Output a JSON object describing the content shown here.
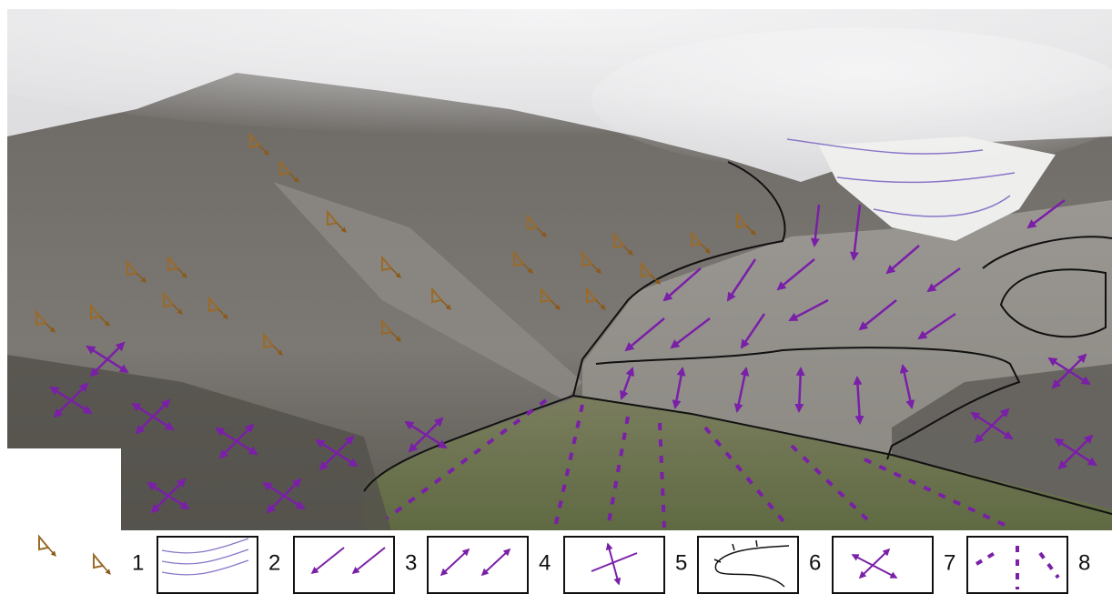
{
  "legend": {
    "items": [
      {
        "label": "1"
      },
      {
        "label": "2"
      },
      {
        "label": "3"
      },
      {
        "label": "4"
      },
      {
        "label": "5"
      },
      {
        "label": "6"
      },
      {
        "label": "7"
      },
      {
        "label": "8"
      }
    ]
  }
}
